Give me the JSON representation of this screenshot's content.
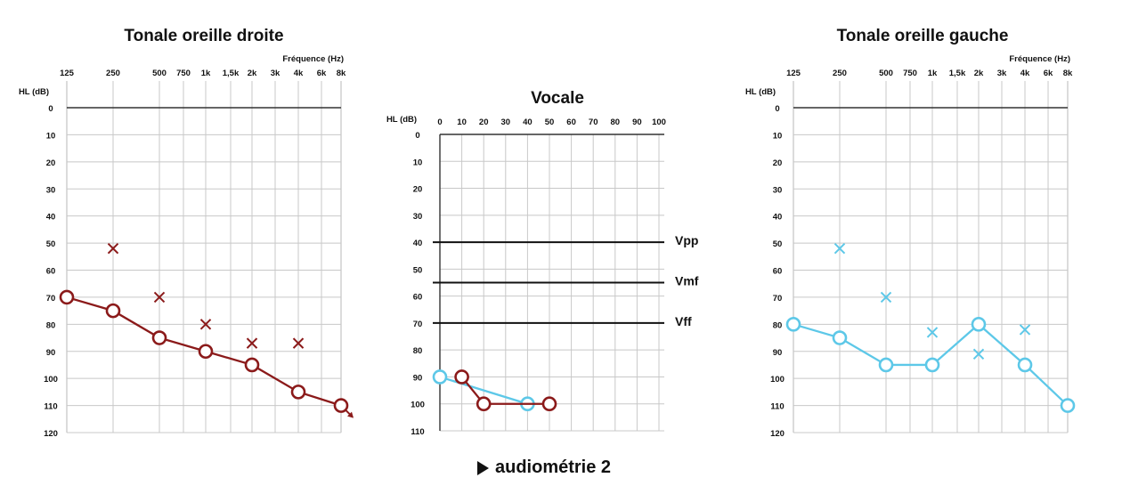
{
  "chart_data": [
    {
      "id": "right",
      "type": "scatter",
      "title": "Tonale oreille droite",
      "xlabel": "Fréquence (Hz)",
      "ylabel": "HL (dB)",
      "x_ticks": [
        "125",
        "250",
        "500",
        "750",
        "1k",
        "1,5k",
        "2k",
        "3k",
        "4k",
        "6k",
        "8k"
      ],
      "y_ticks": [
        "0",
        "10",
        "20",
        "30",
        "40",
        "50",
        "60",
        "70",
        "80",
        "90",
        "100",
        "110",
        "120"
      ],
      "ylim": [
        0,
        120
      ],
      "color": "#8B1A1A",
      "series": [
        {
          "marker": "circle",
          "line": true,
          "x": [
            "125",
            "250",
            "500",
            "1k",
            "2k",
            "4k",
            "8k"
          ],
          "y": [
            70,
            75,
            85,
            90,
            95,
            105,
            110
          ],
          "arrow_on": [
            "8k"
          ]
        },
        {
          "marker": "cross",
          "line": false,
          "x": [
            "250",
            "500",
            "1k",
            "2k",
            "4k"
          ],
          "y": [
            52,
            70,
            80,
            87,
            87
          ]
        }
      ]
    },
    {
      "id": "vocal",
      "type": "line",
      "title": "Vocale",
      "ylabel": "HL (dB)",
      "x_ticks": [
        "0",
        "10",
        "20",
        "30",
        "40",
        "50",
        "60",
        "70",
        "80",
        "90",
        "100"
      ],
      "y_ticks": [
        "0",
        "10",
        "20",
        "30",
        "40",
        "50",
        "60",
        "70",
        "80",
        "90",
        "100",
        "110"
      ],
      "xlim": [
        0,
        100
      ],
      "ylim": [
        0,
        110
      ],
      "reference_lines": [
        {
          "label": "Vpp",
          "tick": "40"
        },
        {
          "label": "Vmf",
          "tick": "55"
        },
        {
          "label": "Vff",
          "tick": "70"
        }
      ],
      "series": [
        {
          "color": "#5DC8E8",
          "marker": "circle",
          "x": [
            0,
            40
          ],
          "y": [
            90,
            100
          ]
        },
        {
          "color": "#8B1A1A",
          "marker": "circle",
          "x": [
            10,
            20,
            50
          ],
          "y": [
            90,
            100,
            100
          ]
        }
      ]
    },
    {
      "id": "left",
      "type": "scatter",
      "title": "Tonale oreille gauche",
      "xlabel": "Fréquence (Hz)",
      "ylabel": "HL (dB)",
      "x_ticks": [
        "125",
        "250",
        "500",
        "750",
        "1k",
        "1,5k",
        "2k",
        "3k",
        "4k",
        "6k",
        "8k"
      ],
      "y_ticks": [
        "0",
        "10",
        "20",
        "30",
        "40",
        "50",
        "60",
        "70",
        "80",
        "90",
        "100",
        "110",
        "120"
      ],
      "ylim": [
        0,
        120
      ],
      "color": "#5DC8E8",
      "series": [
        {
          "marker": "circle",
          "line": true,
          "x": [
            "125",
            "250",
            "500",
            "1k",
            "2k",
            "4k",
            "8k"
          ],
          "y": [
            80,
            85,
            95,
            95,
            80,
            95,
            110
          ]
        },
        {
          "marker": "cross",
          "line": false,
          "x": [
            "250",
            "500",
            "1k",
            "2k",
            "4k"
          ],
          "y": [
            52,
            70,
            83,
            91,
            82
          ]
        }
      ]
    }
  ],
  "caption": {
    "icon": "play-icon",
    "text": "audiométrie 2"
  }
}
